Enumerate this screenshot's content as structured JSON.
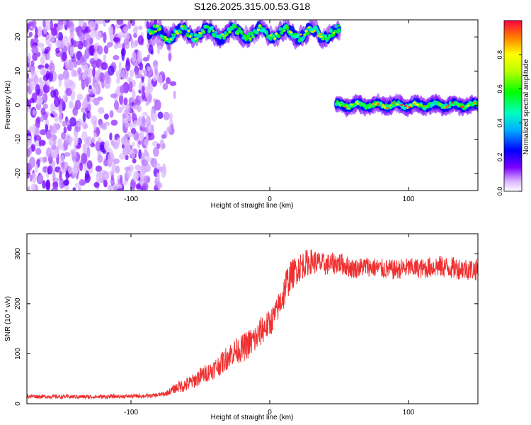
{
  "title": "S126.2025.315.00.53.G18",
  "colors": {
    "snr_line": "#f03030",
    "ridge_core": "#ff2020"
  },
  "spectrogram": {
    "type": "heatmap",
    "xlabel": "Height of straight line (km)",
    "ylabel": "Frequency (Hz)",
    "xlim": [
      -175,
      150
    ],
    "ylim": [
      -25,
      25
    ],
    "xticks": [
      -100,
      0,
      100
    ],
    "yticks": [
      -20,
      -10,
      0,
      10,
      20
    ],
    "noise_region": {
      "x": [
        -175,
        -65
      ],
      "y": [
        -25,
        25
      ]
    },
    "segments": [
      {
        "x": [
          -87,
          50
        ],
        "center_hz": 21,
        "wobble_hz": 2,
        "peak_amplitude": 0.85
      },
      {
        "x": [
          48,
          150
        ],
        "center_hz": 0,
        "wobble_hz": 0.8,
        "peak_amplitude": 0.98
      }
    ]
  },
  "colorbar": {
    "label": "Normalized spectral amplitude",
    "range": [
      0,
      1
    ],
    "ticks": [
      0.0,
      0.2,
      0.4,
      0.6,
      0.8
    ],
    "tick_labels": [
      "0.0",
      "0.2",
      "0.4",
      "0.6",
      "0.8"
    ]
  },
  "chart_data": [
    {
      "type": "heatmap",
      "xlabel": "Height of straight line (km)",
      "ylabel": "Frequency (Hz)",
      "xlim": [
        -175,
        150
      ],
      "ylim": [
        -25,
        25
      ]
    },
    {
      "type": "line",
      "xlabel": "Height of straight line (km)",
      "ylabel": "SNR (10 * v/v)",
      "xlim": [
        -175,
        150
      ],
      "ylim": [
        0,
        340
      ],
      "xticks": [
        -100,
        0,
        100
      ],
      "yticks": [
        0,
        100,
        200,
        300
      ],
      "x": [
        -175,
        -150,
        -125,
        -100,
        -85,
        -75,
        -70,
        -65,
        -60,
        -55,
        -50,
        -45,
        -40,
        -35,
        -30,
        -25,
        -20,
        -15,
        -10,
        -5,
        0,
        5,
        10,
        12,
        15,
        20,
        25,
        30,
        40,
        50,
        60,
        70,
        80,
        90,
        100,
        110,
        120,
        130,
        140,
        150
      ],
      "y": [
        15,
        14,
        14,
        15,
        16,
        20,
        28,
        35,
        38,
        45,
        55,
        62,
        70,
        80,
        95,
        105,
        110,
        120,
        130,
        150,
        160,
        185,
        220,
        240,
        255,
        270,
        280,
        285,
        278,
        282,
        270,
        275,
        270,
        268,
        272,
        270,
        275,
        272,
        270,
        268
      ],
      "noise": [
        4,
        4,
        4,
        4,
        4,
        5,
        8,
        12,
        15,
        15,
        18,
        18,
        20,
        22,
        25,
        25,
        28,
        30,
        30,
        30,
        28,
        25,
        35,
        35,
        30,
        30,
        28,
        25,
        22,
        22,
        20,
        20,
        20,
        20,
        20,
        20,
        22,
        22,
        22,
        22
      ]
    }
  ]
}
